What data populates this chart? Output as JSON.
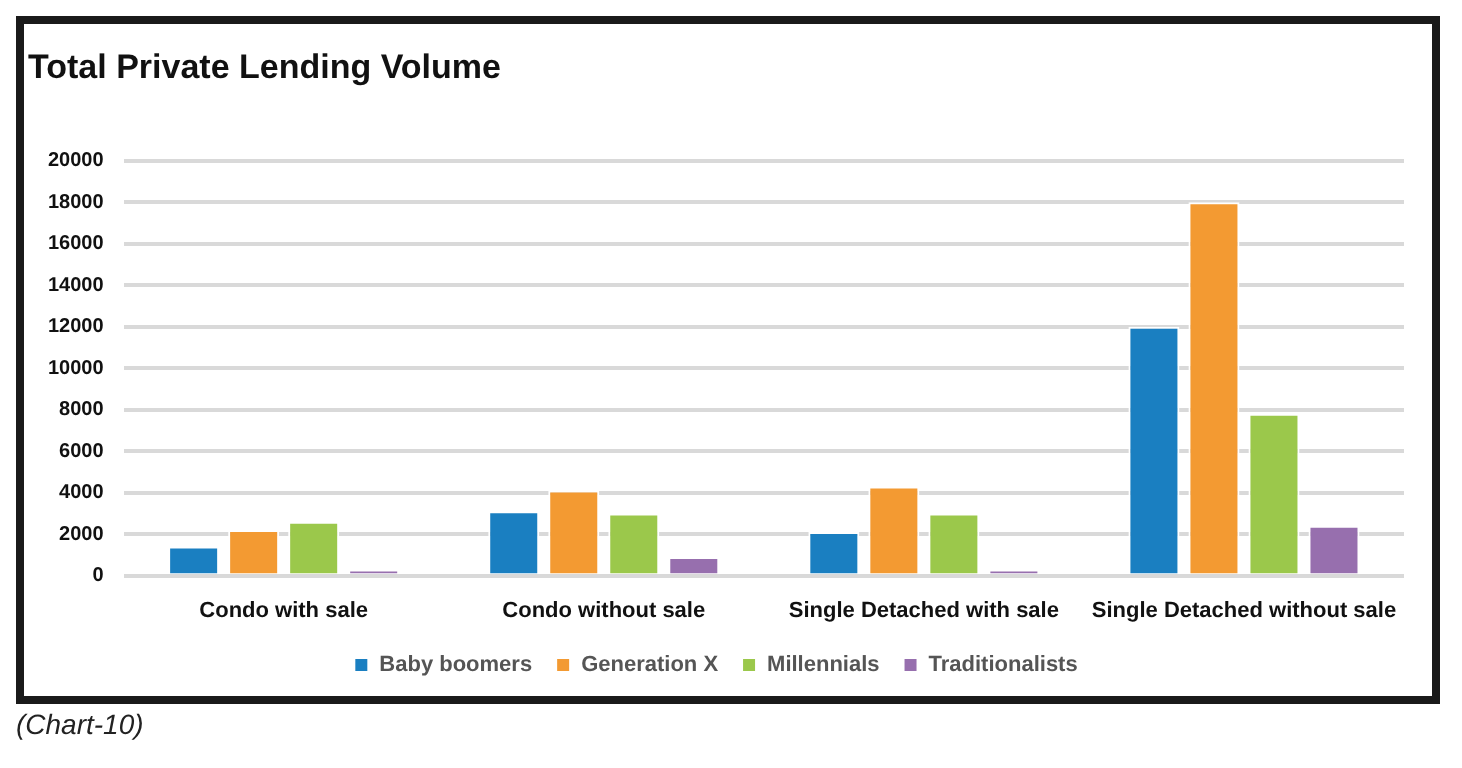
{
  "chart_data": {
    "type": "bar",
    "title": "Total Private Lending Volume",
    "categories": [
      "Condo with sale",
      "Condo without sale",
      "Single Detached with sale",
      "Single Detached without sale"
    ],
    "series": [
      {
        "name": "Baby boomers",
        "color": "#1a7fc1",
        "values": [
          1400,
          3100,
          2100,
          12000
        ]
      },
      {
        "name": "Generation X",
        "color": "#f39a32",
        "values": [
          2200,
          4100,
          4300,
          18000
        ]
      },
      {
        "name": "Millennials",
        "color": "#9bc84b",
        "values": [
          2600,
          3000,
          3000,
          7800
        ]
      },
      {
        "name": "Traditionalists",
        "color": "#976fae",
        "values": [
          300,
          900,
          300,
          2400
        ]
      }
    ],
    "ylim": [
      0,
      20000
    ],
    "yticks": [
      0,
      2000,
      4000,
      6000,
      8000,
      10000,
      12000,
      14000,
      16000,
      18000,
      20000
    ],
    "grid": "y",
    "legend": "bottom",
    "annotations": [
      "(Chart-10)"
    ]
  }
}
